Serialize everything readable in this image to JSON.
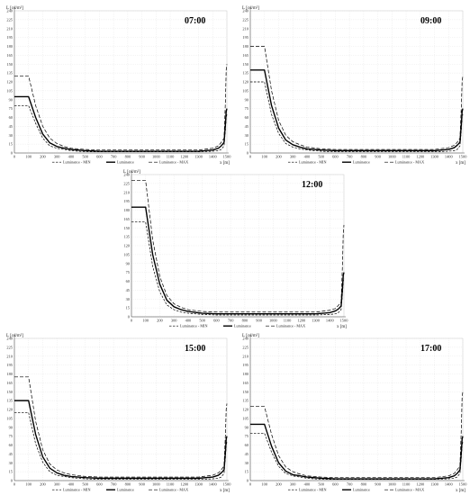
{
  "chart_data": [
    {
      "type": "line",
      "title": "07:00",
      "xlabel": "x [m]",
      "ylabel": "L [cd/m²]",
      "xlim": [
        0,
        1500
      ],
      "ylim": [
        0,
        240
      ],
      "xticks": [
        0,
        100,
        200,
        300,
        400,
        500,
        600,
        700,
        800,
        900,
        1000,
        1100,
        1200,
        1300,
        1400,
        1500
      ],
      "yticks": [
        0,
        15,
        30,
        45,
        60,
        75,
        90,
        105,
        120,
        135,
        150,
        165,
        180,
        195,
        210,
        225,
        240
      ],
      "grid": true,
      "legend": "bottom",
      "series": [
        {
          "name": "Luminance - MIN",
          "style": "dashed",
          "x": [
            0,
            100,
            150,
            200,
            250,
            300,
            350,
            400,
            500,
            600,
            800,
            1000,
            1200,
            1300,
            1400,
            1440,
            1460,
            1480,
            1490,
            1495,
            1500
          ],
          "values": [
            80,
            80,
            50,
            25,
            12,
            8,
            6,
            4,
            2,
            2,
            2,
            2,
            2,
            2,
            3,
            4,
            6,
            12,
            40,
            60,
            65
          ]
        },
        {
          "name": "Luminance",
          "style": "solid",
          "x": [
            0,
            100,
            150,
            200,
            250,
            300,
            350,
            400,
            500,
            600,
            800,
            1000,
            1200,
            1300,
            1400,
            1440,
            1460,
            1480,
            1490,
            1495,
            1500
          ],
          "values": [
            95,
            95,
            60,
            32,
            17,
            11,
            8,
            6,
            4,
            3,
            3,
            3,
            3,
            3,
            5,
            8,
            12,
            18,
            50,
            70,
            75
          ]
        },
        {
          "name": "Luminance - MAX",
          "style": "dashed",
          "x": [
            0,
            100,
            150,
            200,
            250,
            300,
            350,
            400,
            500,
            600,
            800,
            1000,
            1200,
            1300,
            1400,
            1440,
            1460,
            1480,
            1490,
            1495,
            1500
          ],
          "values": [
            130,
            130,
            80,
            45,
            25,
            16,
            11,
            8,
            6,
            5,
            5,
            5,
            5,
            5,
            8,
            12,
            18,
            25,
            90,
            140,
            150
          ]
        }
      ]
    },
    {
      "type": "line",
      "title": "09:00",
      "xlabel": "x [m]",
      "ylabel": "L [cd/m²]",
      "xlim": [
        0,
        1500
      ],
      "ylim": [
        0,
        240
      ],
      "xticks": [
        0,
        100,
        200,
        300,
        400,
        500,
        600,
        700,
        800,
        900,
        1000,
        1100,
        1200,
        1300,
        1400,
        1500
      ],
      "yticks": [
        0,
        15,
        30,
        45,
        60,
        75,
        90,
        105,
        120,
        135,
        150,
        165,
        180,
        195,
        210,
        225,
        240
      ],
      "grid": true,
      "legend": "bottom",
      "series": [
        {
          "name": "Luminance - MIN",
          "style": "dashed",
          "x": [
            0,
            100,
            150,
            200,
            250,
            300,
            350,
            400,
            500,
            600,
            800,
            1000,
            1200,
            1300,
            1400,
            1440,
            1460,
            1480,
            1490,
            1495,
            1500
          ],
          "values": [
            120,
            120,
            65,
            33,
            16,
            10,
            7,
            5,
            3,
            2,
            2,
            2,
            2,
            2,
            3,
            4,
            6,
            12,
            40,
            60,
            65
          ]
        },
        {
          "name": "Luminance",
          "style": "solid",
          "x": [
            0,
            100,
            150,
            200,
            250,
            300,
            350,
            400,
            500,
            600,
            800,
            1000,
            1200,
            1300,
            1400,
            1440,
            1460,
            1480,
            1490,
            1495,
            1500
          ],
          "values": [
            140,
            140,
            80,
            42,
            22,
            14,
            10,
            7,
            5,
            4,
            4,
            4,
            4,
            4,
            6,
            9,
            13,
            18,
            50,
            70,
            75
          ]
        },
        {
          "name": "Luminance - MAX",
          "style": "dashed",
          "x": [
            0,
            100,
            150,
            200,
            250,
            300,
            350,
            400,
            500,
            600,
            800,
            1000,
            1200,
            1300,
            1400,
            1440,
            1460,
            1480,
            1490,
            1495,
            1500
          ],
          "values": [
            180,
            180,
            105,
            55,
            30,
            19,
            14,
            10,
            7,
            6,
            6,
            6,
            6,
            6,
            9,
            13,
            18,
            25,
            80,
            120,
            130
          ]
        }
      ]
    },
    {
      "type": "line",
      "title": "12:00",
      "xlabel": "x [m]",
      "ylabel": "L [cd/m²]",
      "xlim": [
        0,
        1500
      ],
      "ylim": [
        0,
        240
      ],
      "xticks": [
        0,
        100,
        200,
        300,
        400,
        500,
        600,
        700,
        800,
        900,
        1000,
        1100,
        1200,
        1300,
        1400,
        1500
      ],
      "yticks": [
        0,
        15,
        30,
        45,
        60,
        75,
        90,
        105,
        120,
        135,
        150,
        165,
        180,
        195,
        210,
        225,
        240
      ],
      "grid": true,
      "legend": "bottom",
      "series": [
        {
          "name": "Luminance - MIN",
          "style": "dashed",
          "x": [
            0,
            100,
            150,
            200,
            250,
            300,
            350,
            400,
            500,
            600,
            800,
            1000,
            1200,
            1300,
            1400,
            1440,
            1460,
            1480,
            1490,
            1495,
            1500
          ],
          "values": [
            160,
            160,
            85,
            42,
            20,
            12,
            8,
            6,
            4,
            3,
            3,
            3,
            3,
            3,
            4,
            5,
            7,
            12,
            40,
            60,
            65
          ]
        },
        {
          "name": "Luminance",
          "style": "solid",
          "x": [
            0,
            100,
            150,
            200,
            250,
            300,
            350,
            400,
            500,
            600,
            800,
            1000,
            1200,
            1300,
            1400,
            1440,
            1460,
            1480,
            1490,
            1495,
            1500
          ],
          "values": [
            185,
            185,
            105,
            55,
            28,
            17,
            12,
            9,
            6,
            5,
            5,
            5,
            5,
            5,
            7,
            10,
            13,
            18,
            50,
            70,
            75
          ]
        },
        {
          "name": "Luminance - MAX",
          "style": "dashed",
          "x": [
            0,
            100,
            150,
            200,
            250,
            300,
            350,
            400,
            500,
            600,
            800,
            1000,
            1200,
            1300,
            1400,
            1440,
            1460,
            1480,
            1490,
            1495,
            1500
          ],
          "values": [
            230,
            230,
            130,
            68,
            36,
            22,
            16,
            12,
            9,
            8,
            8,
            8,
            8,
            8,
            11,
            14,
            19,
            25,
            90,
            140,
            155
          ]
        }
      ]
    },
    {
      "type": "line",
      "title": "15:00",
      "xlabel": "x [m]",
      "ylabel": "L [cd/m²]",
      "xlim": [
        0,
        1500
      ],
      "ylim": [
        0,
        240
      ],
      "xticks": [
        0,
        100,
        200,
        300,
        400,
        500,
        600,
        700,
        800,
        900,
        1000,
        1100,
        1200,
        1300,
        1400,
        1500
      ],
      "yticks": [
        0,
        15,
        30,
        45,
        60,
        75,
        90,
        105,
        120,
        135,
        150,
        165,
        180,
        195,
        210,
        225,
        240
      ],
      "grid": true,
      "legend": "bottom",
      "series": [
        {
          "name": "Luminance - MIN",
          "style": "dashed",
          "x": [
            0,
            100,
            150,
            200,
            250,
            300,
            350,
            400,
            500,
            600,
            800,
            1000,
            1200,
            1300,
            1400,
            1440,
            1460,
            1480,
            1490,
            1495,
            1500
          ],
          "values": [
            115,
            115,
            62,
            31,
            15,
            9,
            7,
            5,
            3,
            2,
            2,
            2,
            2,
            2,
            3,
            4,
            6,
            12,
            40,
            60,
            65
          ]
        },
        {
          "name": "Luminance",
          "style": "solid",
          "x": [
            0,
            100,
            150,
            200,
            250,
            300,
            350,
            400,
            500,
            600,
            800,
            1000,
            1200,
            1300,
            1400,
            1440,
            1460,
            1480,
            1490,
            1495,
            1500
          ],
          "values": [
            135,
            135,
            78,
            40,
            21,
            13,
            9,
            7,
            5,
            4,
            4,
            4,
            4,
            4,
            6,
            9,
            13,
            18,
            50,
            70,
            75
          ]
        },
        {
          "name": "Luminance - MAX",
          "style": "dashed",
          "x": [
            0,
            100,
            150,
            200,
            250,
            300,
            350,
            400,
            500,
            600,
            800,
            1000,
            1200,
            1300,
            1400,
            1440,
            1460,
            1480,
            1490,
            1495,
            1500
          ],
          "values": [
            175,
            175,
            100,
            52,
            28,
            18,
            13,
            10,
            7,
            6,
            6,
            6,
            6,
            6,
            9,
            13,
            18,
            25,
            80,
            120,
            130
          ]
        }
      ]
    },
    {
      "type": "line",
      "title": "17:00",
      "xlabel": "x [m]",
      "ylabel": "L [cd/m²]",
      "xlim": [
        0,
        1500
      ],
      "ylim": [
        0,
        240
      ],
      "xticks": [
        0,
        100,
        200,
        300,
        400,
        500,
        600,
        700,
        800,
        900,
        1000,
        1100,
        1200,
        1300,
        1400,
        1500
      ],
      "yticks": [
        0,
        15,
        30,
        45,
        60,
        75,
        90,
        105,
        120,
        135,
        150,
        165,
        180,
        195,
        210,
        225,
        240
      ],
      "grid": true,
      "legend": "bottom",
      "series": [
        {
          "name": "Luminance - MIN",
          "style": "dashed",
          "x": [
            0,
            100,
            150,
            200,
            250,
            300,
            350,
            400,
            500,
            600,
            800,
            1000,
            1200,
            1300,
            1400,
            1440,
            1460,
            1480,
            1490,
            1495,
            1500
          ],
          "values": [
            80,
            80,
            48,
            24,
            12,
            8,
            6,
            4,
            2,
            2,
            2,
            2,
            2,
            2,
            3,
            4,
            6,
            12,
            40,
            60,
            65
          ]
        },
        {
          "name": "Luminance",
          "style": "solid",
          "x": [
            0,
            100,
            150,
            200,
            250,
            300,
            350,
            400,
            500,
            600,
            800,
            1000,
            1200,
            1300,
            1400,
            1440,
            1460,
            1480,
            1490,
            1495,
            1500
          ],
          "values": [
            95,
            95,
            58,
            30,
            16,
            10,
            8,
            6,
            4,
            3,
            3,
            3,
            3,
            3,
            5,
            8,
            12,
            18,
            50,
            70,
            75
          ]
        },
        {
          "name": "Luminance - MAX",
          "style": "dashed",
          "x": [
            0,
            100,
            150,
            200,
            250,
            300,
            350,
            400,
            500,
            600,
            800,
            1000,
            1200,
            1300,
            1400,
            1440,
            1460,
            1480,
            1490,
            1495,
            1500
          ],
          "values": [
            125,
            125,
            78,
            42,
            23,
            15,
            11,
            8,
            6,
            5,
            5,
            5,
            5,
            5,
            8,
            12,
            18,
            25,
            90,
            140,
            150
          ]
        }
      ]
    }
  ]
}
